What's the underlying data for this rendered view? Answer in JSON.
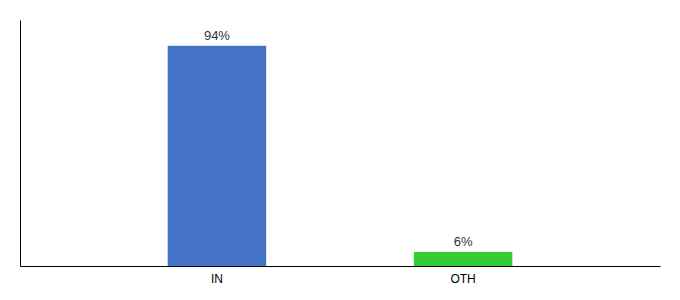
{
  "chart_data": {
    "type": "bar",
    "categories": [
      "IN",
      "OTH"
    ],
    "values": [
      94,
      6
    ],
    "value_labels": [
      "94%",
      "6%"
    ],
    "colors": [
      "#4472c4",
      "#33cc33"
    ],
    "ylim": [
      0,
      105
    ],
    "data_labels": true,
    "tick_labels": "x",
    "grid": false
  }
}
